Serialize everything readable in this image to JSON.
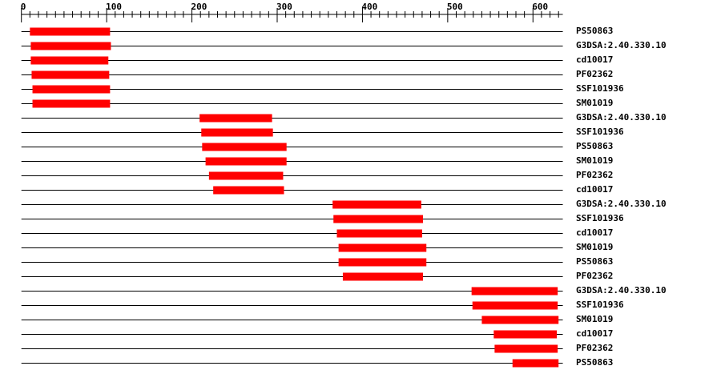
{
  "axis": {
    "min": 0,
    "max": 635,
    "major_step": 100,
    "minor_step": 10,
    "labels": [
      "0",
      "100",
      "200",
      "300",
      "400",
      "500",
      "600"
    ]
  },
  "bar_color": "#ff0000",
  "tracks": [
    {
      "label": "PS50863",
      "start": 10,
      "end": 104
    },
    {
      "label": "G3DSA:2.40.330.10",
      "start": 11,
      "end": 105
    },
    {
      "label": "cd10017",
      "start": 11,
      "end": 102
    },
    {
      "label": "PF02362",
      "start": 12,
      "end": 103
    },
    {
      "label": "SSF101936",
      "start": 13,
      "end": 104
    },
    {
      "label": "SM01019",
      "start": 13,
      "end": 104
    },
    {
      "label": "G3DSA:2.40.330.10",
      "start": 209,
      "end": 294
    },
    {
      "label": "SSF101936",
      "start": 211,
      "end": 295
    },
    {
      "label": "PS50863",
      "start": 212,
      "end": 311
    },
    {
      "label": "SM01019",
      "start": 216,
      "end": 311
    },
    {
      "label": "PF02362",
      "start": 220,
      "end": 307
    },
    {
      "label": "cd10017",
      "start": 225,
      "end": 308
    },
    {
      "label": "G3DSA:2.40.330.10",
      "start": 365,
      "end": 469
    },
    {
      "label": "SSF101936",
      "start": 366,
      "end": 471
    },
    {
      "label": "cd10017",
      "start": 370,
      "end": 470
    },
    {
      "label": "SM01019",
      "start": 372,
      "end": 475
    },
    {
      "label": "PS50863",
      "start": 372,
      "end": 475
    },
    {
      "label": "PF02362",
      "start": 377,
      "end": 471
    },
    {
      "label": "G3DSA:2.40.330.10",
      "start": 528,
      "end": 629
    },
    {
      "label": "SSF101936",
      "start": 529,
      "end": 629
    },
    {
      "label": "SM01019",
      "start": 540,
      "end": 630
    },
    {
      "label": "cd10017",
      "start": 554,
      "end": 628
    },
    {
      "label": "PF02362",
      "start": 555,
      "end": 629
    },
    {
      "label": "PS50863",
      "start": 576,
      "end": 630
    }
  ]
}
